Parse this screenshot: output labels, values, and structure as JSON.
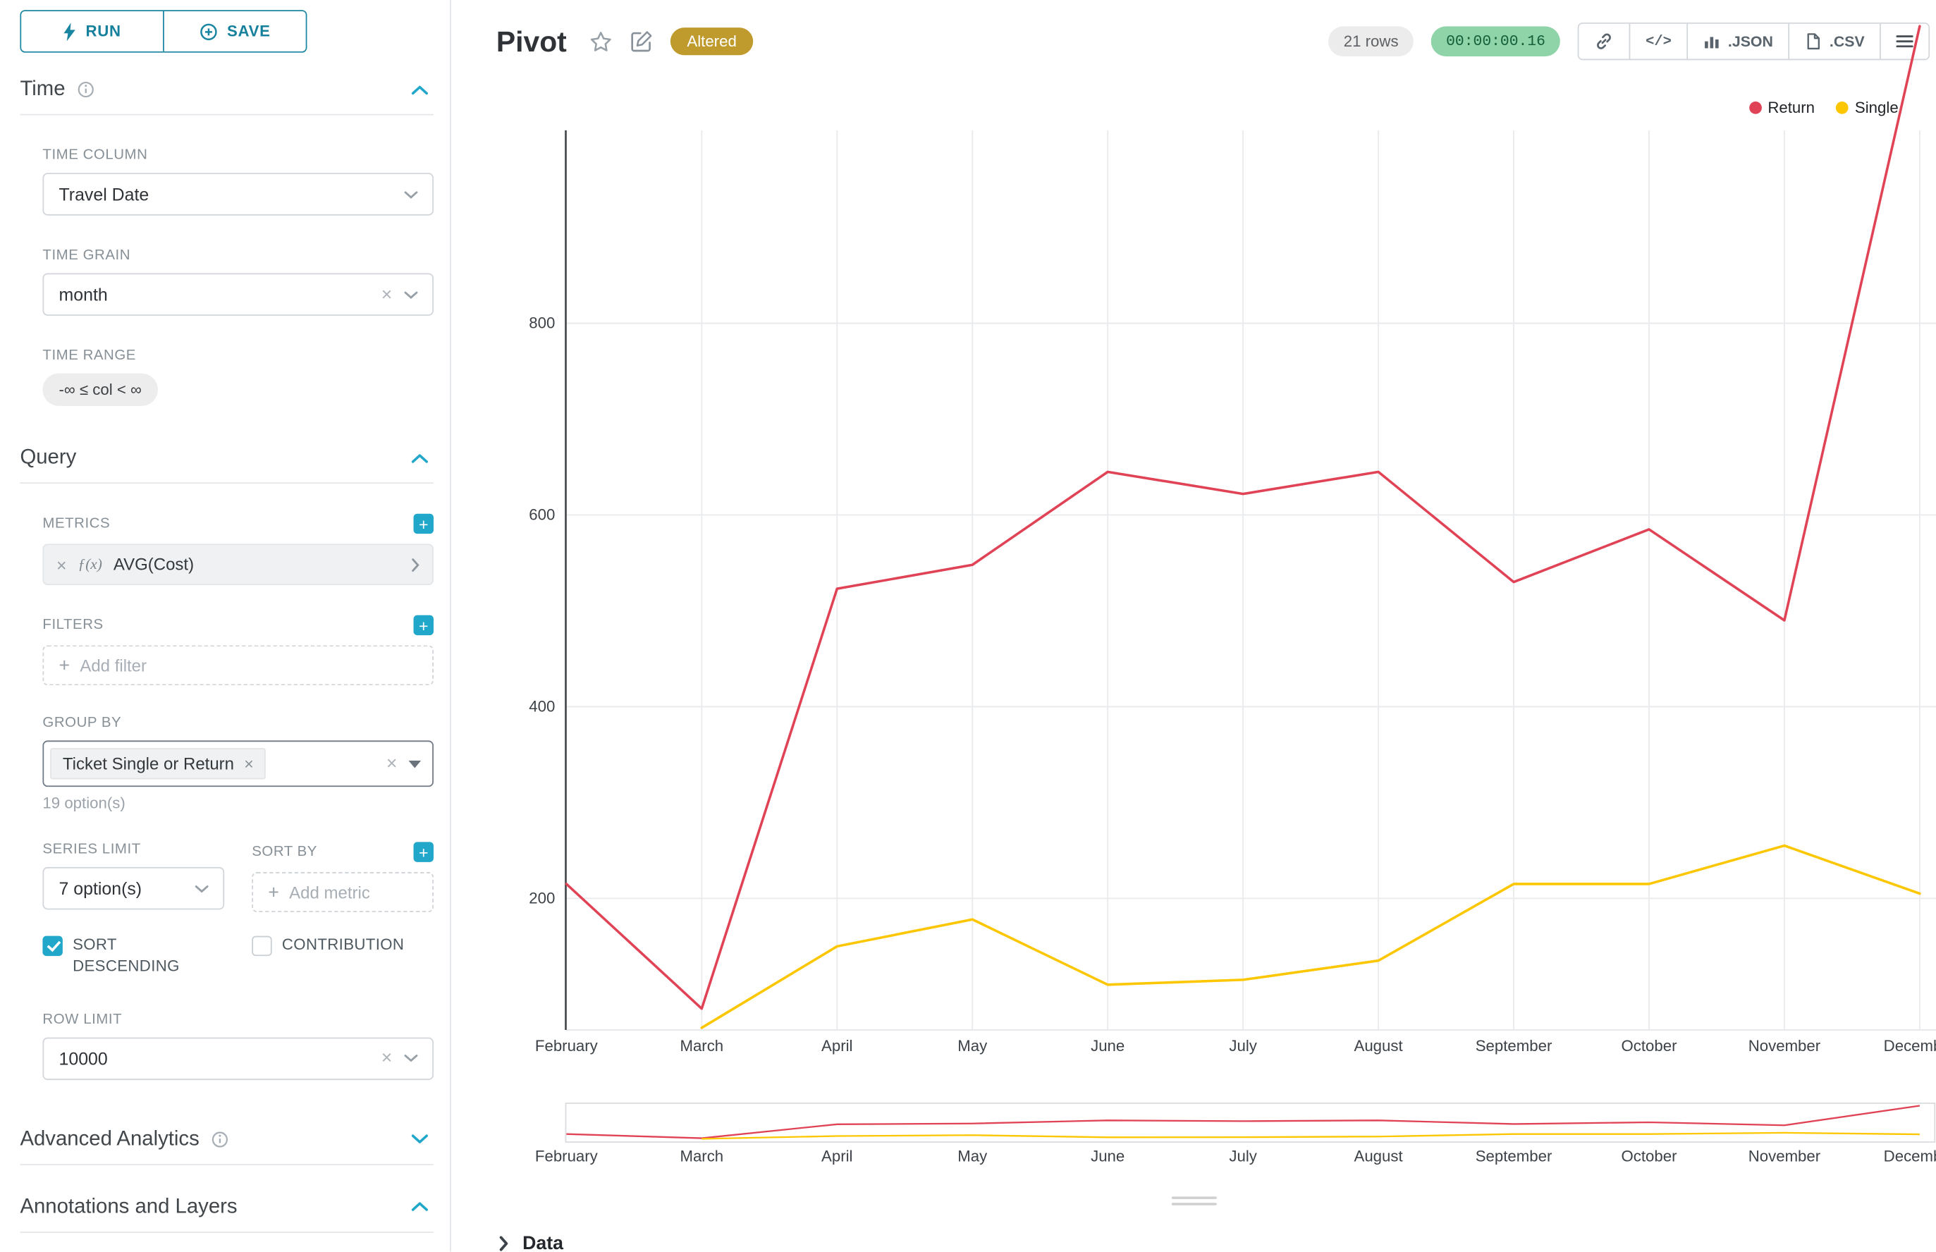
{
  "colors": {
    "primary": "#20a7c9",
    "badge_bg": "#bf9a2c",
    "timer_bg": "#8fd3a8",
    "timer_text": "#14603a",
    "return_line": "#e04355",
    "single_line": "#fcc700"
  },
  "actions": {
    "run": "RUN",
    "save": "SAVE"
  },
  "panels": {
    "time": {
      "title": "Time",
      "fields": {
        "time_column": {
          "label": "TIME COLUMN",
          "value": "Travel Date"
        },
        "time_grain": {
          "label": "TIME GRAIN",
          "value": "month"
        },
        "time_range": {
          "label": "TIME RANGE",
          "value": "-∞ ≤ col < ∞"
        }
      }
    },
    "query": {
      "title": "Query",
      "metrics_label": "METRICS",
      "metric_fx": "ƒ(x)",
      "metric_value": "AVG(Cost)",
      "filters_label": "FILTERS",
      "add_filter": "Add filter",
      "group_by_label": "GROUP BY",
      "group_by_value": "Ticket Single or Return",
      "group_by_hint": "19 option(s)",
      "series_limit_label": "SERIES LIMIT",
      "series_limit_value": "7 option(s)",
      "sort_by_label": "SORT BY",
      "add_metric": "Add metric",
      "sort_descending_label": "SORT DESCENDING",
      "sort_descending_checked": true,
      "contribution_label": "CONTRIBUTION",
      "contribution_checked": false,
      "row_limit_label": "ROW LIMIT",
      "row_limit_value": "10000"
    },
    "advanced": {
      "title": "Advanced Analytics"
    },
    "annotations": {
      "title": "Annotations and Layers"
    }
  },
  "header": {
    "title": "Pivot",
    "badge": "Altered",
    "row_count": "21 rows",
    "timer": "00:00:00.16",
    "export_json": ".JSON",
    "export_csv": ".CSV"
  },
  "data_panel": {
    "title": "Data"
  },
  "chart_data": {
    "type": "line",
    "title": "",
    "x": [
      "February",
      "March",
      "April",
      "May",
      "June",
      "July",
      "August",
      "September",
      "October",
      "November",
      "December"
    ],
    "yticks": [
      200,
      400,
      600,
      800
    ],
    "ylim": [
      0,
      1000
    ],
    "grid": true,
    "legend_position": "top-right",
    "has_range_selector": true,
    "series": [
      {
        "name": "Return",
        "color": "#e04355",
        "values": [
          215,
          85,
          523,
          548,
          645,
          622,
          645,
          530,
          585,
          490,
          1110
        ]
      },
      {
        "name": "Single",
        "color": "#fcc700",
        "values": [
          null,
          65,
          150,
          178,
          110,
          115,
          135,
          215,
          215,
          255,
          205
        ]
      }
    ]
  }
}
